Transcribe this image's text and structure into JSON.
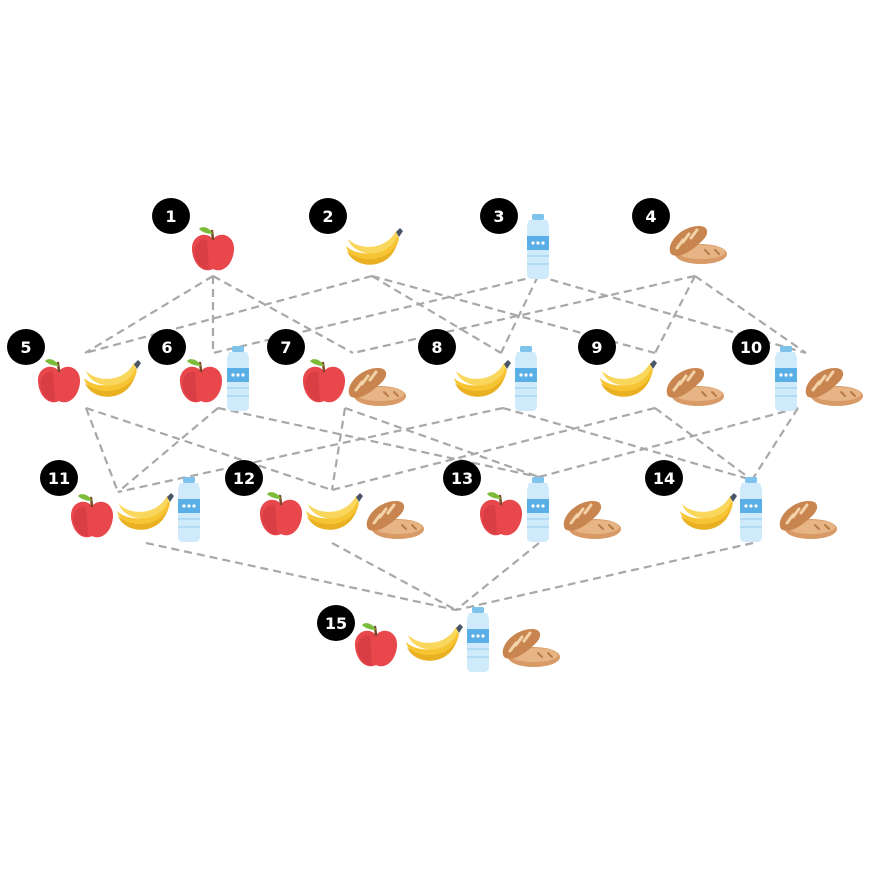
{
  "diagram": {
    "item_names": [
      "apple",
      "banana",
      "water-bottle",
      "bread"
    ],
    "nodes": [
      {
        "label": "1",
        "items": [
          "apple"
        ]
      },
      {
        "label": "2",
        "items": [
          "banana"
        ]
      },
      {
        "label": "3",
        "items": [
          "water-bottle"
        ]
      },
      {
        "label": "4",
        "items": [
          "bread"
        ]
      },
      {
        "label": "5",
        "items": [
          "apple",
          "banana"
        ]
      },
      {
        "label": "6",
        "items": [
          "apple",
          "water-bottle"
        ]
      },
      {
        "label": "7",
        "items": [
          "apple",
          "bread"
        ]
      },
      {
        "label": "8",
        "items": [
          "banana",
          "water-bottle"
        ]
      },
      {
        "label": "9",
        "items": [
          "banana",
          "bread"
        ]
      },
      {
        "label": "10",
        "items": [
          "water-bottle",
          "bread"
        ]
      },
      {
        "label": "11",
        "items": [
          "apple",
          "banana",
          "water-bottle"
        ]
      },
      {
        "label": "12",
        "items": [
          "apple",
          "banana",
          "bread"
        ]
      },
      {
        "label": "13",
        "items": [
          "apple",
          "water-bottle",
          "bread"
        ]
      },
      {
        "label": "14",
        "items": [
          "banana",
          "water-bottle",
          "bread"
        ]
      },
      {
        "label": "15",
        "items": [
          "apple",
          "banana",
          "water-bottle",
          "bread"
        ]
      }
    ],
    "edges": [
      [
        "1",
        "5"
      ],
      [
        "1",
        "6"
      ],
      [
        "1",
        "7"
      ],
      [
        "2",
        "5"
      ],
      [
        "2",
        "8"
      ],
      [
        "2",
        "9"
      ],
      [
        "3",
        "6"
      ],
      [
        "3",
        "8"
      ],
      [
        "3",
        "10"
      ],
      [
        "4",
        "7"
      ],
      [
        "4",
        "9"
      ],
      [
        "4",
        "10"
      ],
      [
        "5",
        "11"
      ],
      [
        "5",
        "12"
      ],
      [
        "6",
        "11"
      ],
      [
        "6",
        "13"
      ],
      [
        "7",
        "12"
      ],
      [
        "7",
        "13"
      ],
      [
        "8",
        "11"
      ],
      [
        "8",
        "14"
      ],
      [
        "9",
        "12"
      ],
      [
        "9",
        "14"
      ],
      [
        "10",
        "13"
      ],
      [
        "10",
        "14"
      ],
      [
        "11",
        "15"
      ],
      [
        "12",
        "15"
      ],
      [
        "13",
        "15"
      ],
      [
        "14",
        "15"
      ]
    ],
    "colors": {
      "edge": "#a8a8a8",
      "badge": "#000000",
      "badge_text": "#ffffff",
      "apple": "#e8474c",
      "banana": "#f7c533",
      "water": "#bfe3f7",
      "bread": "#c98550"
    }
  }
}
